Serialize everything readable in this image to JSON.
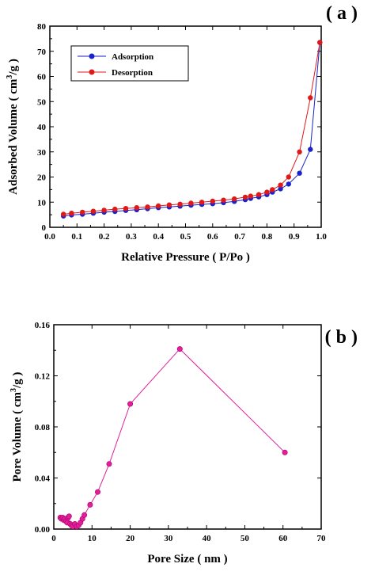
{
  "chart_data": [
    {
      "panel_label": "( a )",
      "type": "line",
      "xlabel": "Relative Pressure ( P/Po )",
      "ylabel_main": "Adsorbed Volume ( cm",
      "ylabel_sup": "3",
      "ylabel_end": "/g )",
      "xlim": [
        0.0,
        1.0
      ],
      "ylim": [
        0,
        80
      ],
      "xticks": [
        "0.0",
        "0.1",
        "0.2",
        "0.3",
        "0.4",
        "0.5",
        "0.6",
        "0.7",
        "0.8",
        "0.9",
        "1.0"
      ],
      "yticks": [
        "0",
        "10",
        "20",
        "30",
        "40",
        "50",
        "60",
        "70",
        "80"
      ],
      "legend_position": "top-left",
      "series": [
        {
          "name": "Adsorption",
          "color": "#1a22c8",
          "x": [
            0.05,
            0.08,
            0.12,
            0.16,
            0.2,
            0.24,
            0.28,
            0.32,
            0.36,
            0.4,
            0.44,
            0.48,
            0.52,
            0.56,
            0.6,
            0.64,
            0.68,
            0.72,
            0.74,
            0.77,
            0.8,
            0.82,
            0.85,
            0.88,
            0.92,
            0.96,
            0.995
          ],
          "y": [
            4.5,
            4.9,
            5.2,
            5.6,
            6.0,
            6.3,
            6.7,
            7.0,
            7.4,
            7.8,
            8.1,
            8.4,
            8.8,
            9.1,
            9.4,
            9.8,
            10.3,
            11.0,
            11.5,
            12.1,
            13.0,
            14.0,
            15.3,
            17.2,
            21.5,
            31.0,
            73.5
          ]
        },
        {
          "name": "Desorption",
          "color": "#e01818",
          "x": [
            0.05,
            0.08,
            0.12,
            0.16,
            0.2,
            0.24,
            0.28,
            0.32,
            0.36,
            0.4,
            0.44,
            0.48,
            0.52,
            0.56,
            0.6,
            0.64,
            0.68,
            0.72,
            0.74,
            0.77,
            0.8,
            0.82,
            0.85,
            0.88,
            0.92,
            0.96,
            0.995
          ],
          "y": [
            5.2,
            5.6,
            6.0,
            6.4,
            6.8,
            7.2,
            7.5,
            7.8,
            8.1,
            8.5,
            8.9,
            9.2,
            9.6,
            10.0,
            10.4,
            10.8,
            11.3,
            12.0,
            12.4,
            13.0,
            14.0,
            15.0,
            16.8,
            20.0,
            30.0,
            51.5,
            73.5
          ]
        }
      ]
    },
    {
      "panel_label": "( b )",
      "type": "line",
      "xlabel": "Pore Size ( nm )",
      "ylabel_main": "Pore Volume ( cm",
      "ylabel_sup": "3",
      "ylabel_end": "/g )",
      "xlim": [
        0,
        70
      ],
      "ylim": [
        0,
        0.16
      ],
      "xticks": [
        "0",
        "10",
        "20",
        "30",
        "40",
        "50",
        "60",
        "70"
      ],
      "yticks": [
        "0.00",
        "0.04",
        "0.08",
        "0.12",
        "0.16"
      ],
      "series": [
        {
          "name": "",
          "color": "#e0209a",
          "x": [
            1.7,
            2.0,
            2.3,
            2.6,
            2.9,
            3.2,
            3.5,
            3.7,
            4.0,
            4.3,
            4.6,
            5.0,
            5.5,
            6.0,
            6.5,
            7.0,
            7.5,
            8.0,
            9.5,
            11.5,
            14.5,
            20.0,
            33.0,
            60.5
          ],
          "y": [
            0.009,
            0.008,
            0.009,
            0.007,
            0.008,
            0.006,
            0.005,
            0.009,
            0.01,
            0.004,
            0.003,
            0.002,
            0.004,
            0.002,
            0.003,
            0.005,
            0.008,
            0.011,
            0.019,
            0.029,
            0.051,
            0.098,
            0.141,
            0.06
          ]
        }
      ]
    }
  ]
}
